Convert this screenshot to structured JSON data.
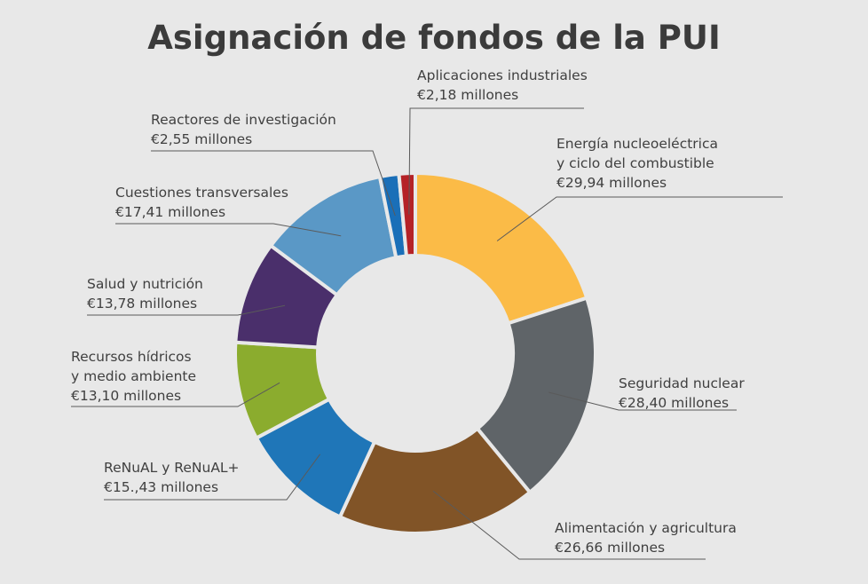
{
  "chart_data": {
    "type": "pie",
    "title": "Asignación de fondos de la PUI",
    "unit": "millones de euros",
    "slices": [
      {
        "name": "Energía nucleoeléctrica y ciclo del combustible",
        "name_lines": [
          "Energía nucleoeléctrica",
          "y ciclo del combustible"
        ],
        "value": 29.94,
        "value_label": "€29,94 millones",
        "color": "#fbbb47"
      },
      {
        "name": "Seguridad nuclear",
        "name_lines": [
          "Seguridad nuclear"
        ],
        "value": 28.4,
        "value_label": "€28,40 millones",
        "color": "#5f6468"
      },
      {
        "name": "Alimentación y agricultura",
        "name_lines": [
          "Alimentación y agricultura"
        ],
        "value": 26.66,
        "value_label": "€26,66 millones",
        "color": "#815427"
      },
      {
        "name": "ReNuAL y ReNuAL+",
        "name_lines": [
          "ReNuAL y ReNuAL+"
        ],
        "value": 15.43,
        "value_label": "€15.,43 millones",
        "color": "#1f76b8"
      },
      {
        "name": "Recursos hídricos y medio ambiente",
        "name_lines": [
          "Recursos hídricos",
          "y medio ambiente"
        ],
        "value": 13.1,
        "value_label": "€13,10 millones",
        "color": "#8bac2e"
      },
      {
        "name": "Salud y nutrición",
        "name_lines": [
          "Salud y nutrición"
        ],
        "value": 13.78,
        "value_label": "€13,78 millones",
        "color": "#4a2f6b"
      },
      {
        "name": "Cuestiones transversales",
        "name_lines": [
          "Cuestiones transversales"
        ],
        "value": 17.41,
        "value_label": "€17,41 millones",
        "color": "#5a98c6"
      },
      {
        "name": "Reactores de investigación",
        "name_lines": [
          "Reactores de investigación"
        ],
        "value": 2.55,
        "value_label": "€2,55 millones",
        "color": "#1a6fb8"
      },
      {
        "name": "Aplicaciones industriales",
        "name_lines": [
          "Aplicaciones industriales"
        ],
        "value": 2.18,
        "value_label": "€2,18 millones",
        "color": "#b52227"
      }
    ],
    "legend": "none",
    "grid": false
  }
}
